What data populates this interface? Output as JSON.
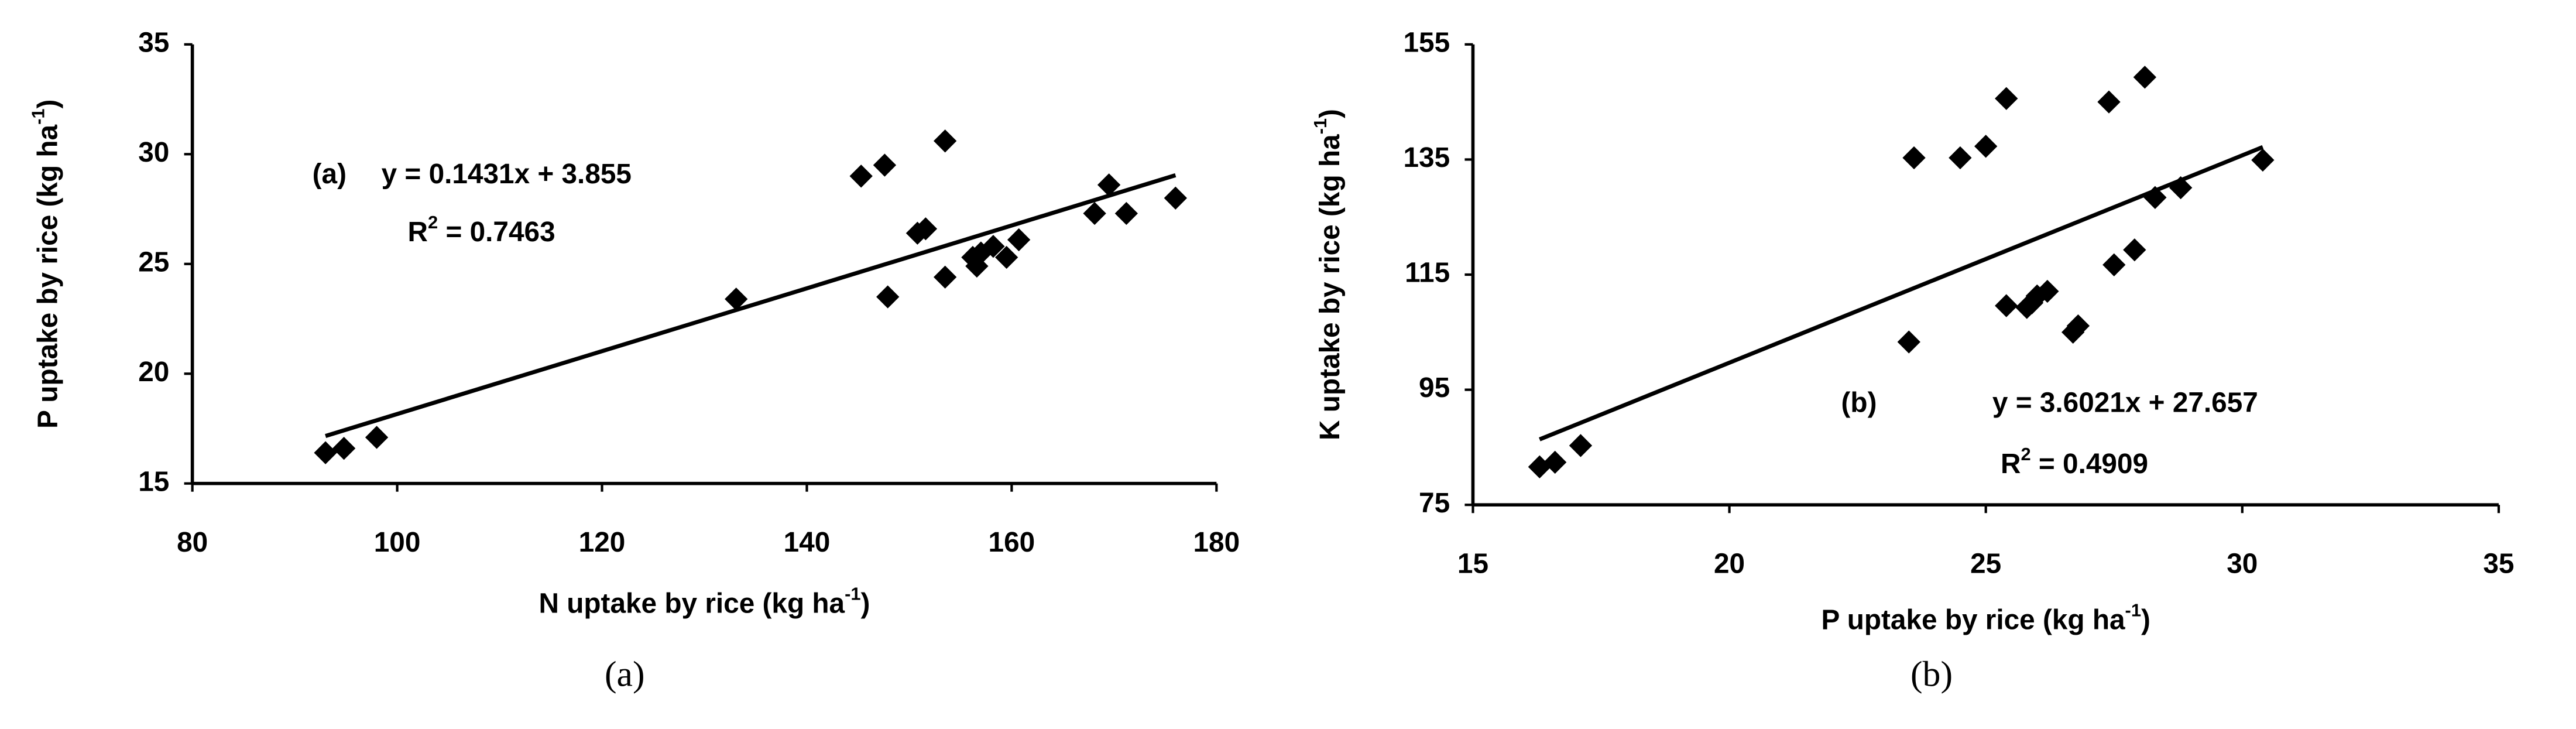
{
  "chart_data": [
    {
      "type": "scatter",
      "caption": "(a)",
      "panel_label": "(a)",
      "x_label": {
        "text": "N uptake by rice (kg ha",
        "sup": "-1",
        "tail": ")"
      },
      "y_label": {
        "text": "P uptake by rice (kg ha",
        "sup": "-1",
        "tail": ")"
      },
      "equation": "y = 0.1431x + 3.855",
      "r2": {
        "text": "R",
        "sup": "2",
        "tail": " = 0.7463"
      },
      "trendline": {
        "slope": 0.1431,
        "intercept": 3.855
      },
      "color": "#000000",
      "x": [
        93.0,
        94.8,
        98.0,
        133.1,
        145.3,
        147.6,
        147.9,
        150.8,
        151.6,
        153.5,
        153.5,
        156.2,
        156.6,
        157.0,
        158.2,
        159.5,
        160.7,
        168.1,
        169.5,
        171.2,
        176.0
      ],
      "values": [
        16.4,
        16.6,
        17.1,
        23.4,
        29.0,
        29.5,
        23.5,
        26.4,
        26.6,
        30.6,
        24.4,
        25.3,
        24.9,
        25.5,
        25.8,
        25.3,
        26.1,
        27.3,
        28.6,
        27.3,
        28.0
      ],
      "xlim": [
        80,
        180
      ],
      "ylim": [
        15,
        35
      ],
      "xticks": [
        80,
        100,
        120,
        140,
        160,
        180
      ],
      "yticks": [
        15,
        20,
        25,
        30,
        35
      ]
    },
    {
      "type": "scatter",
      "caption": "(b)",
      "panel_label": "(b)",
      "x_label": {
        "text": "P uptake by rice (kg ha",
        "sup": "-1",
        "tail": ")"
      },
      "y_label": {
        "text": "K uptake by rice (kg ha",
        "sup": "-1",
        "tail": ")"
      },
      "equation": "y = 3.6021x + 27.657",
      "r2": {
        "text": "R",
        "sup": "2",
        "tail": " = 0.4909"
      },
      "trendline": {
        "slope": 3.6021,
        "intercept": 27.657
      },
      "color": "#000000",
      "x": [
        16.3,
        16.6,
        17.1,
        23.5,
        23.6,
        24.5,
        25.0,
        25.4,
        25.4,
        25.8,
        25.9,
        26.0,
        26.2,
        26.7,
        26.8,
        27.4,
        27.5,
        28.1,
        27.9,
        28.3,
        28.8,
        30.4
      ],
      "values": [
        81.6,
        82.4,
        85.3,
        103.3,
        135.3,
        135.3,
        137.3,
        145.6,
        109.6,
        109.3,
        110.1,
        111.3,
        112.1,
        105.0,
        106.1,
        145.0,
        116.7,
        149.3,
        119.3,
        128.4,
        130.1,
        134.9
      ],
      "xlim": [
        15,
        35
      ],
      "ylim": [
        75,
        155
      ],
      "xticks": [
        15,
        20,
        25,
        30,
        35
      ],
      "yticks": [
        75,
        95,
        115,
        135,
        155
      ]
    }
  ]
}
